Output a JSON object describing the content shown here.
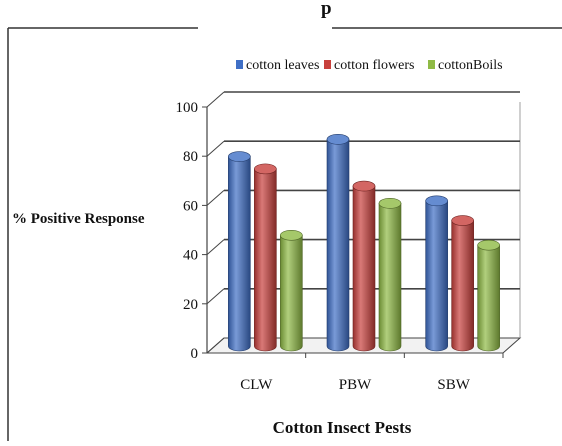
{
  "chart_data": {
    "type": "bar",
    "title_fragment": "p",
    "xlabel": "Cotton Insect Pests",
    "ylabel": "% Positive Response",
    "categories": [
      "CLW",
      "PBW",
      "SBW"
    ],
    "ylim": [
      0,
      100
    ],
    "yticks": [
      0,
      20,
      40,
      60,
      80,
      100
    ],
    "grid": true,
    "legend_position": "top",
    "three_d": true,
    "series": [
      {
        "name": "cotton leaves",
        "color": "#3f6fc6",
        "values": [
          77,
          84,
          59
        ]
      },
      {
        "name": "cotton flowers",
        "color": "#c8403c",
        "values": [
          72,
          65,
          51
        ]
      },
      {
        "name": "cottonBoils",
        "color": "#8fba45",
        "values": [
          45,
          58,
          41
        ]
      }
    ]
  }
}
